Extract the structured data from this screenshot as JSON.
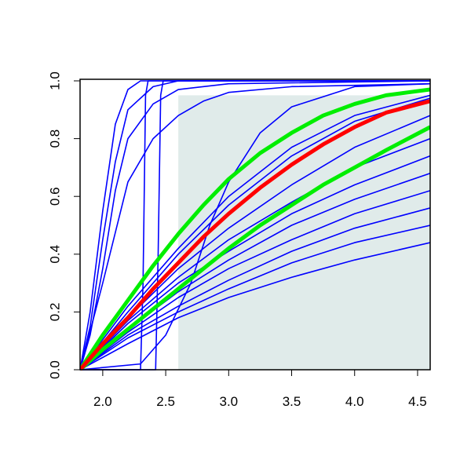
{
  "chart_data": {
    "type": "line",
    "xlim": [
      1.82,
      4.6
    ],
    "ylim": [
      0,
      1
    ],
    "xticks": [
      {
        "value": 2,
        "label": "2.0"
      },
      {
        "value": 2.5,
        "label": "2.5"
      },
      {
        "value": 3,
        "label": "3.0"
      },
      {
        "value": 3.5,
        "label": "3.5"
      },
      {
        "value": 4,
        "label": "4.0"
      },
      {
        "value": 4.5,
        "label": "4.5"
      }
    ],
    "yticks": [
      {
        "value": 0,
        "label": "0.0"
      },
      {
        "value": 0.2,
        "label": "0.2"
      },
      {
        "value": 0.4,
        "label": "0.4"
      },
      {
        "value": 0.6,
        "label": "0.6"
      },
      {
        "value": 0.8,
        "label": "0.8"
      },
      {
        "value": 1,
        "label": "1.0"
      }
    ],
    "shade": {
      "xlim": [
        2.6,
        4.6
      ],
      "ylim": [
        0,
        0.95
      ],
      "color": "#e0ebea"
    },
    "series": [
      {
        "color": "#0000ff",
        "line_width": 1.6,
        "x": [
          1.82,
          1.9,
          2.0,
          2.1,
          2.2,
          2.3,
          4.6
        ],
        "values": [
          0,
          0.2,
          0.55,
          0.85,
          0.97,
          1,
          1
        ]
      },
      {
        "color": "#0000ff",
        "line_width": 1.6,
        "x": [
          1.82,
          1.9,
          2.0,
          2.1,
          2.2,
          2.4,
          2.6,
          4.6
        ],
        "values": [
          0,
          0.15,
          0.45,
          0.72,
          0.9,
          0.98,
          1,
          1
        ]
      },
      {
        "color": "#0000ff",
        "line_width": 1.6,
        "x": [
          1.82,
          1.9,
          2.0,
          2.1,
          2.2,
          2.4,
          2.6,
          3.0,
          4.6
        ],
        "values": [
          0,
          0.12,
          0.35,
          0.62,
          0.8,
          0.92,
          0.97,
          0.99,
          1
        ]
      },
      {
        "color": "#0000ff",
        "line_width": 1.6,
        "x": [
          1.82,
          2.0,
          2.2,
          2.4,
          2.6,
          2.8,
          3.0,
          3.5,
          4.6
        ],
        "values": [
          0,
          0.3,
          0.65,
          0.8,
          0.88,
          0.93,
          0.96,
          0.98,
          0.99
        ]
      },
      {
        "color": "#0000ff",
        "line_width": 1.6,
        "x": [
          1.82,
          2.3,
          2.32,
          2.34,
          2.36,
          4.6
        ],
        "values": [
          0,
          0,
          0.3,
          0.95,
          1,
          1
        ]
      },
      {
        "color": "#0000ff",
        "line_width": 1.6,
        "x": [
          1.82,
          2.42,
          2.44,
          2.46,
          2.48,
          4.6
        ],
        "values": [
          0,
          0,
          0.4,
          0.95,
          1,
          1
        ]
      },
      {
        "color": "#0000ff",
        "line_width": 1.6,
        "x": [
          1.82,
          2.3,
          2.5,
          2.7,
          2.85,
          3.0,
          3.25,
          3.5,
          4.0,
          4.6
        ],
        "values": [
          0,
          0.02,
          0.12,
          0.3,
          0.5,
          0.65,
          0.82,
          0.91,
          0.98,
          0.99
        ]
      },
      {
        "color": "#0000ff",
        "line_width": 1.6,
        "x": [
          1.82,
          2.2,
          2.6,
          3.0,
          3.5,
          4.0,
          4.6
        ],
        "values": [
          0,
          0.22,
          0.42,
          0.6,
          0.77,
          0.88,
          0.95
        ]
      },
      {
        "color": "#0000ff",
        "line_width": 1.6,
        "x": [
          1.82,
          2.2,
          2.6,
          3.0,
          3.5,
          4.0,
          4.6
        ],
        "values": [
          0,
          0.2,
          0.4,
          0.57,
          0.74,
          0.86,
          0.94
        ]
      },
      {
        "color": "#0000ff",
        "line_width": 1.6,
        "x": [
          1.82,
          2.2,
          2.6,
          3.0,
          3.5,
          4.0,
          4.6
        ],
        "values": [
          0,
          0.18,
          0.35,
          0.49,
          0.64,
          0.77,
          0.88
        ]
      },
      {
        "color": "#0000ff",
        "line_width": 1.6,
        "x": [
          1.82,
          2.2,
          2.6,
          3.0,
          3.5,
          4.0,
          4.6
        ],
        "values": [
          0,
          0.17,
          0.32,
          0.45,
          0.58,
          0.7,
          0.8
        ]
      },
      {
        "color": "#0000ff",
        "line_width": 1.6,
        "x": [
          1.82,
          2.2,
          2.6,
          3.0,
          3.5,
          4.0,
          4.6
        ],
        "values": [
          0,
          0.16,
          0.3,
          0.41,
          0.54,
          0.64,
          0.74
        ]
      },
      {
        "color": "#0000ff",
        "line_width": 1.6,
        "x": [
          1.82,
          2.2,
          2.6,
          3.0,
          3.5,
          4.0,
          4.6
        ],
        "values": [
          0,
          0.14,
          0.27,
          0.38,
          0.5,
          0.59,
          0.68
        ]
      },
      {
        "color": "#0000ff",
        "line_width": 1.6,
        "x": [
          1.82,
          2.2,
          2.6,
          3.0,
          3.5,
          4.0,
          4.6
        ],
        "values": [
          0,
          0.13,
          0.25,
          0.35,
          0.45,
          0.54,
          0.62
        ]
      },
      {
        "color": "#0000ff",
        "line_width": 1.6,
        "x": [
          1.82,
          2.2,
          2.6,
          3.0,
          3.5,
          4.0,
          4.6
        ],
        "values": [
          0,
          0.12,
          0.22,
          0.31,
          0.41,
          0.49,
          0.56
        ]
      },
      {
        "color": "#0000ff",
        "line_width": 1.6,
        "x": [
          1.82,
          2.2,
          2.6,
          3.0,
          3.5,
          4.0,
          4.6
        ],
        "values": [
          0,
          0.11,
          0.2,
          0.28,
          0.37,
          0.44,
          0.5
        ]
      },
      {
        "color": "#0000ff",
        "line_width": 1.6,
        "x": [
          1.82,
          2.2,
          2.6,
          3.0,
          3.5,
          4.0,
          4.6
        ],
        "values": [
          0,
          0.09,
          0.18,
          0.25,
          0.32,
          0.38,
          0.44
        ]
      },
      {
        "color": "#00ee00",
        "line_width": 5,
        "x": [
          1.82,
          2.0,
          2.2,
          2.4,
          2.6,
          2.8,
          3.0,
          3.25,
          3.5,
          3.75,
          4.0,
          4.25,
          4.6
        ],
        "values": [
          0,
          0.12,
          0.24,
          0.36,
          0.47,
          0.57,
          0.66,
          0.75,
          0.82,
          0.88,
          0.92,
          0.95,
          0.97
        ]
      },
      {
        "color": "#00ee00",
        "line_width": 5,
        "x": [
          1.82,
          2.0,
          2.2,
          2.4,
          2.6,
          2.8,
          3.0,
          3.25,
          3.5,
          3.75,
          4.0,
          4.25,
          4.6
        ],
        "values": [
          0,
          0.07,
          0.14,
          0.21,
          0.28,
          0.35,
          0.42,
          0.5,
          0.57,
          0.64,
          0.7,
          0.76,
          0.84
        ]
      },
      {
        "color": "#ff0000",
        "line_width": 5,
        "x": [
          1.82,
          2.0,
          2.2,
          2.4,
          2.6,
          2.8,
          3.0,
          3.25,
          3.5,
          3.75,
          4.0,
          4.25,
          4.6
        ],
        "values": [
          0,
          0.09,
          0.18,
          0.28,
          0.37,
          0.46,
          0.54,
          0.63,
          0.71,
          0.78,
          0.84,
          0.89,
          0.93
        ]
      }
    ]
  }
}
